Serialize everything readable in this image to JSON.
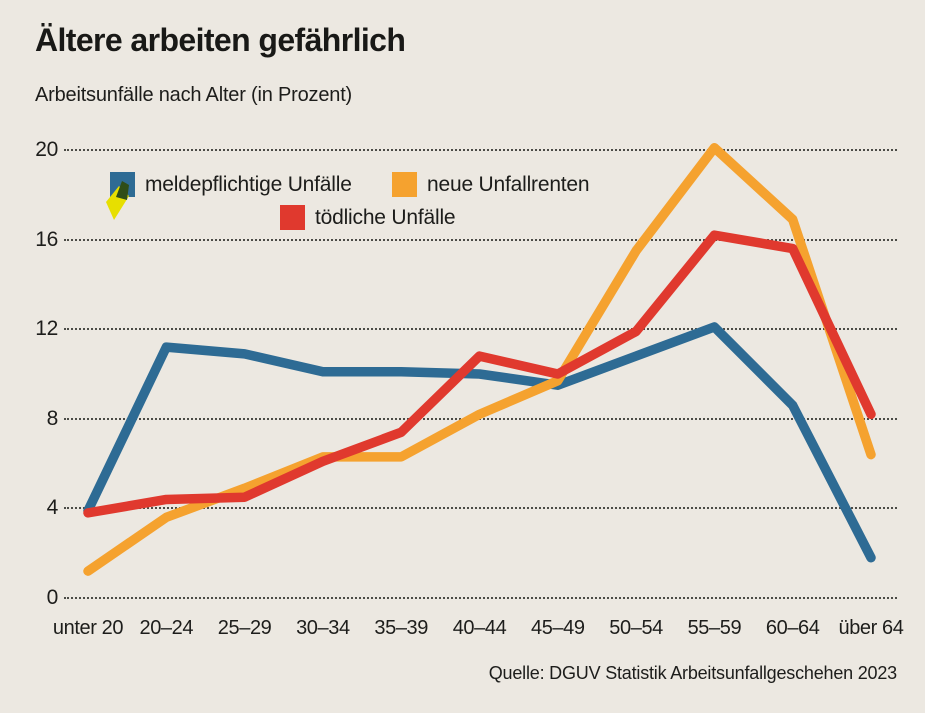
{
  "page": {
    "background_color": "#ece8e1",
    "text_color": "#1d1d1b"
  },
  "header": {
    "title": "Ältere arbeiten gefährlich",
    "subtitle": "Arbeitsunfälle nach Alter (in Prozent)"
  },
  "source": "Quelle: DGUV Statistik Arbeitsunfallgeschehen 2023",
  "artifact": {
    "description": "small yellow marker/cursor overlapping blue legend swatch",
    "yellow_color": "#e7df00",
    "shadow_color": "#2f4d18"
  },
  "chart_data": {
    "type": "line",
    "title": "Ältere arbeiten gefährlich",
    "subtitle": "Arbeitsunfälle nach Alter (in Prozent)",
    "xlabel": "",
    "ylabel": "",
    "ylim": [
      0,
      20
    ],
    "yticks": [
      0,
      4,
      8,
      12,
      16,
      20
    ],
    "grid": "dotted-horizontal",
    "legend_position": "top-center-two-rows",
    "categories": [
      "unter 20",
      "20–24",
      "25–29",
      "30–34",
      "35–39",
      "40–44",
      "45–49",
      "50–54",
      "55–59",
      "60–64",
      "über 64"
    ],
    "series": [
      {
        "name": "meldepflichtige Unfälle",
        "color": "#2e6b94",
        "values": [
          3.9,
          11.2,
          10.9,
          10.1,
          10.1,
          10.0,
          9.5,
          10.8,
          12.1,
          8.6,
          1.8
        ]
      },
      {
        "name": "neue Unfallrenten",
        "color": "#f5a22f",
        "values": [
          1.2,
          3.6,
          4.9,
          6.3,
          6.3,
          8.2,
          9.7,
          15.5,
          20.1,
          16.9,
          6.4
        ]
      },
      {
        "name": "tödliche Unfälle",
        "color": "#e0392e",
        "values": [
          3.8,
          4.4,
          4.5,
          6.1,
          7.4,
          10.8,
          10.0,
          11.9,
          16.2,
          15.6,
          8.2
        ]
      }
    ]
  }
}
